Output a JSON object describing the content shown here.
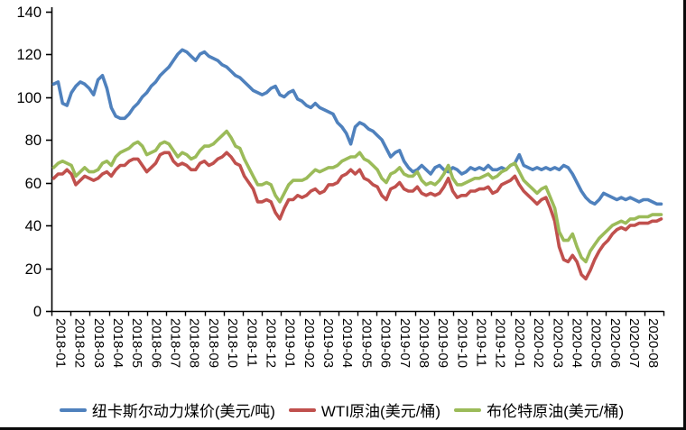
{
  "chart_data": {
    "type": "line",
    "title": "",
    "grid": false,
    "legend_position": "bottom",
    "ylim": [
      0,
      140
    ],
    "y_ticks": [
      0,
      20,
      40,
      60,
      80,
      100,
      120,
      140
    ],
    "x_categories": [
      "2018-01",
      "2018-02",
      "2018-03",
      "2018-04",
      "2018-05",
      "2018-06",
      "2018-07",
      "2018-08",
      "2018-09",
      "2018-10",
      "2018-11",
      "2018-12",
      "2019-01",
      "2019-02",
      "2019-03",
      "2019-04",
      "2019-05",
      "2019-06",
      "2019-07",
      "2019-08",
      "2019-09",
      "2019-10",
      "2019-11",
      "2019-12",
      "2020-01",
      "2020-02",
      "2020-03",
      "2020-04",
      "2020-05",
      "2020-06",
      "2020-07",
      "2020-08"
    ],
    "x_note": "weekly observations, ~4-5 points per labeled month",
    "axis_color": "#000000",
    "series": [
      {
        "name": "纽卡斯尔动力煤价(美元/吨)",
        "color": "#4F81BD",
        "values": [
          106,
          107,
          97,
          96,
          102,
          105,
          107,
          106,
          104,
          101,
          108,
          110,
          104,
          95,
          91,
          90,
          90,
          92,
          95,
          97,
          100,
          102,
          105,
          107,
          110,
          112,
          114,
          117,
          120,
          122,
          121,
          119,
          117,
          120,
          121,
          119,
          118,
          117,
          115,
          114,
          112,
          110,
          109,
          107,
          105,
          103,
          102,
          101,
          102,
          104,
          105,
          101,
          100,
          102,
          103,
          99,
          98,
          96,
          95,
          97,
          95,
          94,
          93,
          92,
          88,
          86,
          83,
          78,
          86,
          88,
          87,
          85,
          84,
          82,
          80,
          76,
          72,
          74,
          75,
          70,
          67,
          65,
          66,
          68,
          66,
          64,
          67,
          68,
          66,
          65,
          67,
          66,
          64,
          65,
          67,
          66,
          67,
          66,
          68,
          66,
          66,
          67,
          66,
          68,
          69,
          73,
          68,
          67,
          66,
          67,
          66,
          67,
          66,
          67,
          66,
          68,
          67,
          64,
          60,
          56,
          53,
          51,
          50,
          52,
          55,
          54,
          53,
          52,
          53,
          52,
          53,
          52,
          51,
          52,
          52,
          51,
          50,
          50
        ]
      },
      {
        "name": "WTI原油(美元/桶)",
        "color": "#C0504D",
        "values": [
          62,
          64,
          64,
          66,
          64,
          59,
          61,
          63,
          62,
          61,
          62,
          64,
          65,
          63,
          66,
          68,
          68,
          70,
          71,
          71,
          68,
          65,
          67,
          69,
          73,
          74,
          74,
          70,
          68,
          69,
          68,
          66,
          66,
          69,
          70,
          68,
          69,
          71,
          72,
          74,
          72,
          69,
          68,
          63,
          60,
          57,
          51,
          51,
          52,
          51,
          46,
          43,
          48,
          52,
          52,
          54,
          53,
          54,
          56,
          57,
          55,
          56,
          59,
          59,
          60,
          63,
          64,
          66,
          64,
          66,
          62,
          61,
          59,
          58,
          54,
          52,
          57,
          58,
          60,
          57,
          56,
          56,
          58,
          55,
          54,
          55,
          54,
          55,
          58,
          62,
          56,
          53,
          54,
          54,
          56,
          56,
          57,
          57,
          58,
          55,
          56,
          59,
          60,
          61,
          63,
          59,
          56,
          54,
          52,
          50,
          52,
          53,
          48,
          42,
          30,
          24,
          23,
          26,
          23,
          17,
          15,
          19,
          24,
          28,
          31,
          33,
          36,
          38,
          39,
          38,
          40,
          40,
          41,
          41,
          41,
          42,
          42,
          43
        ]
      },
      {
        "name": "布伦特原油(美元/桶)",
        "color": "#9BBB59",
        "values": [
          67,
          69,
          70,
          69,
          68,
          63,
          65,
          67,
          65,
          65,
          66,
          69,
          70,
          68,
          72,
          74,
          75,
          76,
          78,
          79,
          77,
          73,
          74,
          75,
          78,
          79,
          78,
          75,
          72,
          74,
          73,
          71,
          72,
          75,
          77,
          77,
          78,
          80,
          82,
          84,
          81,
          77,
          76,
          71,
          67,
          63,
          59,
          59,
          60,
          59,
          54,
          51,
          55,
          59,
          61,
          61,
          61,
          62,
          64,
          66,
          65,
          66,
          67,
          67,
          68,
          70,
          71,
          72,
          72,
          74,
          71,
          70,
          68,
          66,
          62,
          60,
          64,
          65,
          67,
          64,
          63,
          63,
          65,
          61,
          59,
          60,
          59,
          61,
          64,
          68,
          62,
          59,
          59,
          60,
          61,
          62,
          62,
          63,
          64,
          62,
          63,
          65,
          66,
          68,
          69,
          65,
          61,
          59,
          57,
          55,
          57,
          58,
          53,
          48,
          37,
          33,
          33,
          36,
          30,
          25,
          23,
          28,
          31,
          34,
          36,
          38,
          40,
          41,
          42,
          41,
          43,
          43,
          44,
          44,
          44,
          45,
          45,
          45
        ]
      }
    ]
  }
}
